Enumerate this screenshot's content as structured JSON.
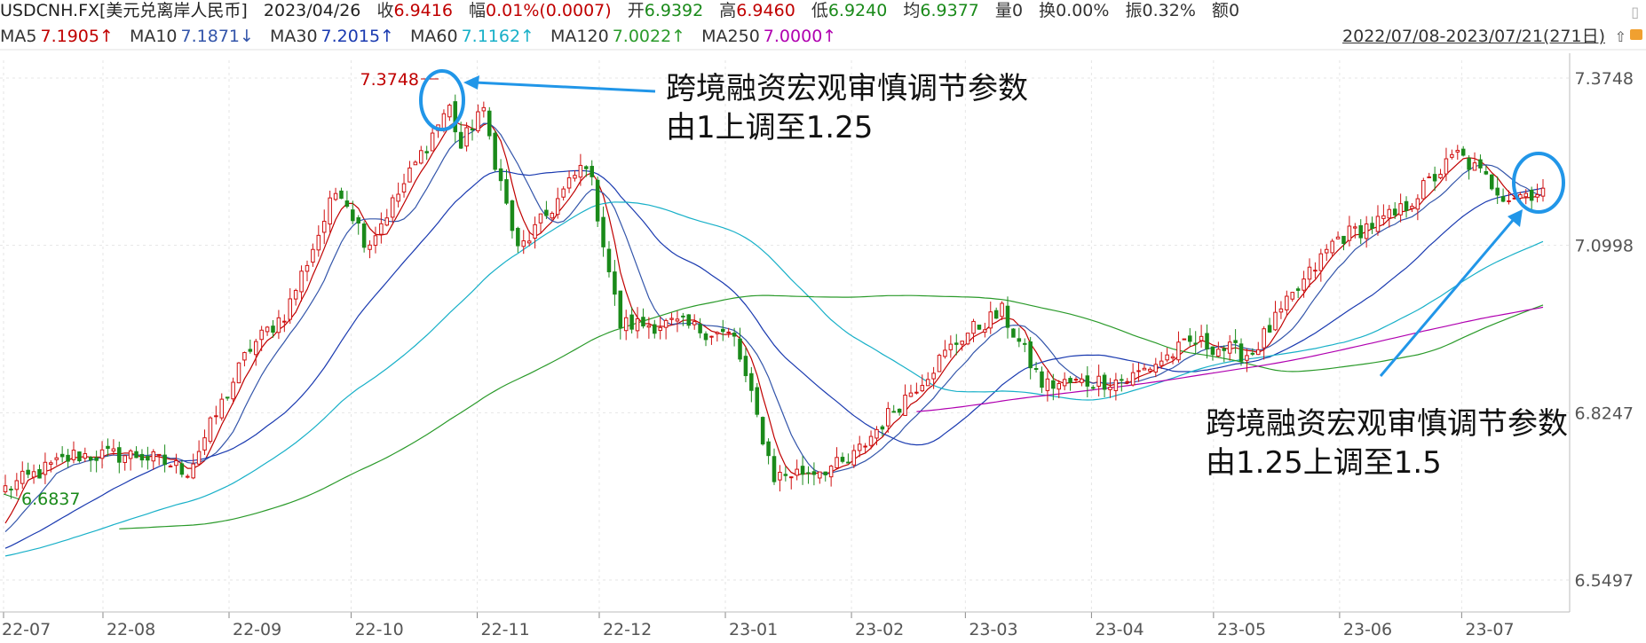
{
  "header": {
    "symbol": "USDCNH.FX[美元兑离岸人民币]",
    "date": "2023/04/26",
    "close_label": "收",
    "close": "6.9416",
    "change_label": "幅",
    "change": "0.01%(0.0007)",
    "open_label": "开",
    "open": "6.9392",
    "high_label": "高",
    "high": "6.9460",
    "low_label": "低",
    "low": "6.9240",
    "avg_label": "均",
    "avg": "6.9377",
    "volume_label": "量",
    "volume": "0",
    "turnover_label": "换",
    "turnover": "0.00%",
    "amplitude_label": "振",
    "amplitude": "0.32%",
    "amount_label": "额",
    "amount": "0"
  },
  "ma_bar": [
    {
      "label": "MA5",
      "value": "7.1905↑",
      "color": "#c00000"
    },
    {
      "label": "MA10",
      "value": "7.1871↓",
      "color": "#3355aa"
    },
    {
      "label": "MA30",
      "value": "7.2015↑",
      "color": "#1a3ab0"
    },
    {
      "label": "MA60",
      "value": "7.1162↑",
      "color": "#18b0c8"
    },
    {
      "label": "MA120",
      "value": "7.0022↑",
      "color": "#2a9a2a"
    },
    {
      "label": "MA250",
      "value": "7.0000↑",
      "color": "#b000b0"
    }
  ],
  "range_label": "2022/07/08-2023/07/21(271日)",
  "annotations": {
    "first": [
      "跨境融资宏观审慎调节参数",
      "由1上调至1.25"
    ],
    "second": [
      "跨境融资宏观审慎调节参数",
      "由1.25上调至1.5"
    ]
  },
  "chart_data": {
    "type": "candlestick",
    "x_range": [
      "2022-07-08",
      "2023-07-21"
    ],
    "x_ticks": [
      "22-07",
      "22-08",
      "22-09",
      "22-10",
      "22-11",
      "22-12",
      "23-01",
      "23-02",
      "23-03",
      "23-04",
      "23-05",
      "23-06",
      "23-07"
    ],
    "y_ticks": [
      "7.3748",
      "7.0998",
      "6.8247",
      "6.5497"
    ],
    "ylim": [
      6.5497,
      7.3748
    ],
    "grid": true,
    "max_label": "7.3748",
    "min_label": "6.6837",
    "colors": {
      "up": "#d01010",
      "down": "#1a8a1a"
    },
    "anchors": [
      {
        "t": "2022-07-08",
        "v": 6.7
      },
      {
        "t": "2022-07-25",
        "v": 6.755
      },
      {
        "t": "2022-08-10",
        "v": 6.755
      },
      {
        "t": "2022-08-22",
        "v": 6.73
      },
      {
        "t": "2022-09-06",
        "v": 6.93
      },
      {
        "t": "2022-09-15",
        "v": 6.99
      },
      {
        "t": "2022-09-28",
        "v": 7.2
      },
      {
        "t": "2022-10-05",
        "v": 7.1
      },
      {
        "t": "2022-10-14",
        "v": 7.2
      },
      {
        "t": "2022-10-25",
        "v": 7.33
      },
      {
        "t": "2022-10-28",
        "v": 7.26
      },
      {
        "t": "2022-11-02",
        "v": 7.33
      },
      {
        "t": "2022-11-11",
        "v": 7.09
      },
      {
        "t": "2022-11-17",
        "v": 7.14
      },
      {
        "t": "2022-11-28",
        "v": 7.24
      },
      {
        "t": "2022-12-06",
        "v": 6.97
      },
      {
        "t": "2022-12-20",
        "v": 6.97
      },
      {
        "t": "2023-01-03",
        "v": 6.95
      },
      {
        "t": "2023-01-13",
        "v": 6.72
      },
      {
        "t": "2023-01-31",
        "v": 6.74
      },
      {
        "t": "2023-02-10",
        "v": 6.82
      },
      {
        "t": "2023-02-28",
        "v": 6.95
      },
      {
        "t": "2023-03-10",
        "v": 6.99
      },
      {
        "t": "2023-03-20",
        "v": 6.87
      },
      {
        "t": "2023-04-10",
        "v": 6.88
      },
      {
        "t": "2023-04-26",
        "v": 6.9416
      },
      {
        "t": "2023-05-10",
        "v": 6.92
      },
      {
        "t": "2023-05-31",
        "v": 7.11
      },
      {
        "t": "2023-06-15",
        "v": 7.15
      },
      {
        "t": "2023-06-30",
        "v": 7.25
      },
      {
        "t": "2023-07-12",
        "v": 7.18
      },
      {
        "t": "2023-07-21",
        "v": 7.19
      }
    ],
    "series": [
      {
        "name": "MA5",
        "color": "#c00000"
      },
      {
        "name": "MA10",
        "color": "#3355aa"
      },
      {
        "name": "MA30",
        "color": "#1a3ab0"
      },
      {
        "name": "MA60",
        "color": "#18b0c8"
      },
      {
        "name": "MA120",
        "color": "#2a9a2a"
      },
      {
        "name": "MA250",
        "color": "#b000b0"
      }
    ]
  }
}
